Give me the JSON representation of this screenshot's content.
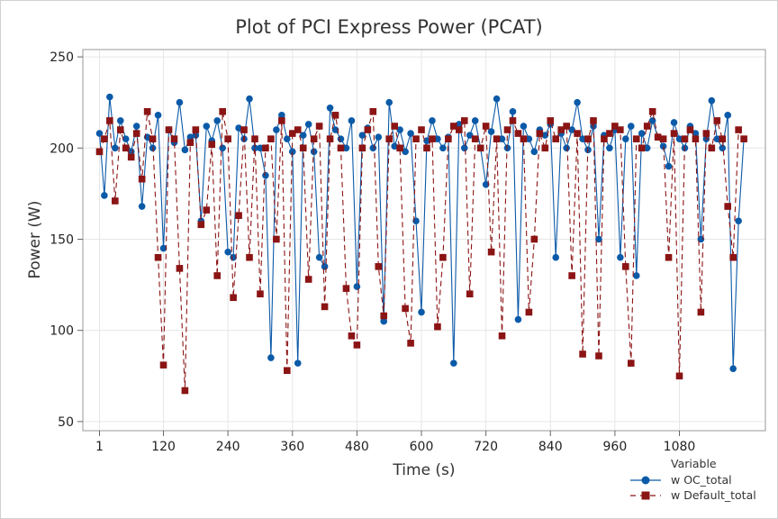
{
  "chart_data": {
    "type": "line",
    "title": "Plot of PCI Express Power (PCAT)",
    "xlabel": "Time (s)",
    "ylabel": "Power (W)",
    "xlim": [
      -30,
      1240
    ],
    "ylim": [
      45,
      254
    ],
    "xticks": [
      1,
      120,
      240,
      360,
      480,
      600,
      720,
      840,
      960,
      1080
    ],
    "yticks": [
      50,
      100,
      150,
      200,
      250
    ],
    "grid": true,
    "legend": {
      "title": "Variable",
      "position": "bottom-right"
    },
    "x": [
      1,
      10,
      20,
      30,
      40,
      50,
      60,
      70,
      80,
      90,
      100,
      110,
      120,
      130,
      140,
      150,
      160,
      170,
      180,
      190,
      200,
      210,
      220,
      230,
      240,
      250,
      260,
      270,
      280,
      290,
      300,
      310,
      320,
      330,
      340,
      350,
      360,
      370,
      380,
      390,
      400,
      410,
      420,
      430,
      440,
      450,
      460,
      470,
      480,
      490,
      500,
      510,
      520,
      530,
      540,
      550,
      560,
      570,
      580,
      590,
      600,
      610,
      620,
      630,
      640,
      650,
      660,
      670,
      680,
      690,
      700,
      710,
      720,
      730,
      740,
      750,
      760,
      770,
      780,
      790,
      800,
      810,
      820,
      830,
      840,
      850,
      860,
      870,
      880,
      890,
      900,
      910,
      920,
      930,
      940,
      950,
      960,
      970,
      980,
      990,
      1000,
      1010,
      1020,
      1030,
      1040,
      1050,
      1060,
      1070,
      1080,
      1090,
      1100,
      1110,
      1120,
      1130,
      1140,
      1150,
      1160,
      1170,
      1180,
      1190,
      1200
    ],
    "series": [
      {
        "name": "w OC_total",
        "color": "#0b5aa8",
        "marker": "circle",
        "line": "solid",
        "values": [
          208,
          174,
          228,
          200,
          215,
          205,
          198,
          212,
          168,
          206,
          200,
          218,
          145,
          210,
          203,
          225,
          199,
          206,
          207,
          160,
          212,
          204,
          215,
          200,
          143,
          140,
          211,
          205,
          227,
          200,
          200,
          185,
          85,
          210,
          218,
          205,
          198,
          82,
          207,
          213,
          198,
          140,
          135,
          222,
          210,
          205,
          200,
          215,
          124,
          207,
          211,
          200,
          206,
          105,
          225,
          201,
          210,
          198,
          208,
          160,
          110,
          204,
          215,
          205,
          200,
          206,
          82,
          213,
          200,
          207,
          215,
          200,
          180,
          209,
          227,
          205,
          200,
          220,
          106,
          212,
          205,
          198,
          210,
          207,
          213,
          140,
          208,
          200,
          210,
          225,
          205,
          199,
          212,
          150,
          207,
          200,
          210,
          140,
          205,
          212,
          130,
          208,
          200,
          215,
          206,
          201,
          190,
          214,
          205,
          200,
          212,
          208,
          150,
          205,
          226,
          205,
          200,
          218,
          79,
          160,
          205
        ]
      },
      {
        "name": "w Default_total",
        "color": "#8b1414",
        "marker": "square",
        "line": "dashed",
        "values": [
          198,
          205,
          215,
          171,
          210,
          200,
          195,
          208,
          183,
          220,
          205,
          140,
          81,
          210,
          205,
          134,
          67,
          203,
          210,
          158,
          166,
          202,
          130,
          220,
          205,
          118,
          163,
          210,
          140,
          205,
          120,
          200,
          205,
          150,
          215,
          78,
          208,
          210,
          200,
          128,
          205,
          212,
          113,
          205,
          218,
          200,
          123,
          97,
          92,
          200,
          210,
          220,
          135,
          108,
          205,
          212,
          200,
          112,
          93,
          205,
          210,
          200,
          205,
          102,
          140,
          205,
          212,
          210,
          215,
          120,
          205,
          200,
          212,
          143,
          205,
          97,
          210,
          215,
          208,
          205,
          110,
          150,
          208,
          200,
          215,
          205,
          210,
          212,
          130,
          208,
          87,
          205,
          215,
          86,
          205,
          208,
          212,
          210,
          135,
          82,
          205,
          200,
          212,
          220,
          206,
          205,
          140,
          208,
          75,
          205,
          210,
          205,
          110,
          208,
          200,
          215,
          205,
          168,
          140,
          210,
          205
        ]
      }
    ]
  }
}
